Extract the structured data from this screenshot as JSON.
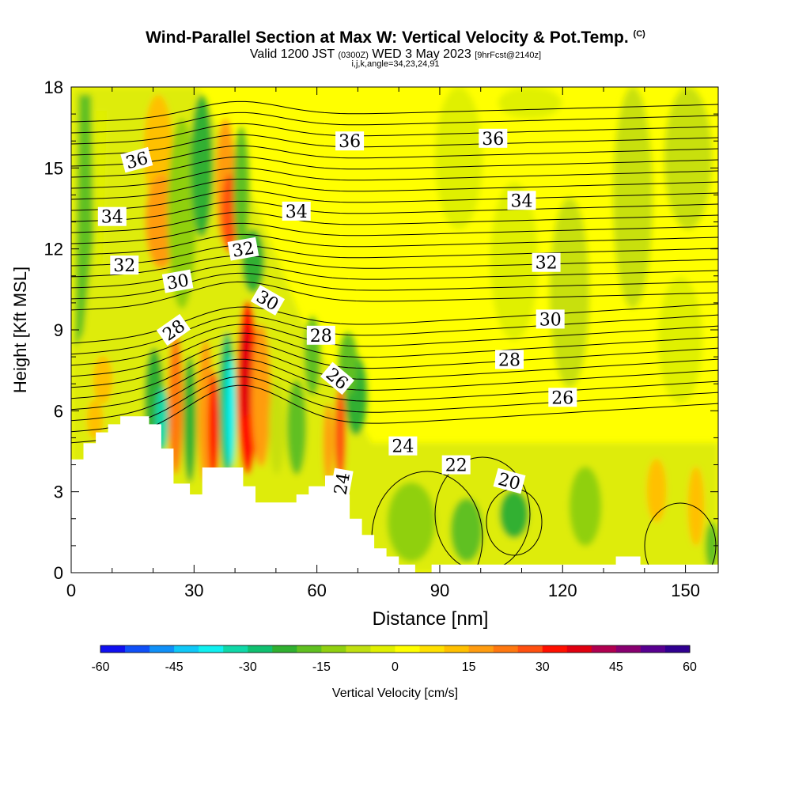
{
  "header": {
    "title": "Wind-Parallel Section at Max W: Vertical Velocity & Pot.Temp.",
    "copyright": "(C)",
    "valid": "Valid 1200 JST",
    "utc": "(0300Z)",
    "date": "WED 3 May 2023",
    "fcst": "[9hrFcst@2140z]",
    "indices": "i,j,k,angle=34,23,24,91"
  },
  "chart_data": {
    "type": "heatmap",
    "xlabel": "Distance [nm]",
    "ylabel": "Height [Kft MSL]",
    "xlim": [
      0,
      158
    ],
    "ylim": [
      0,
      18
    ],
    "xticks": [
      0,
      30,
      60,
      90,
      120,
      150
    ],
    "yticks": [
      0,
      3,
      6,
      9,
      12,
      15,
      18
    ],
    "colorbar": {
      "label": "Vertical Velocity [cm/s]",
      "ticks": [
        -60,
        -45,
        -30,
        -15,
        0,
        15,
        30,
        45,
        60
      ],
      "colors": [
        "#1010f0",
        "#1050f8",
        "#1090f8",
        "#10c8f8",
        "#10f0f0",
        "#10d8a8",
        "#10c070",
        "#30b030",
        "#60c020",
        "#90d010",
        "#c0e010",
        "#e0f000",
        "#ffff00",
        "#ffe000",
        "#ffc000",
        "#ff9c10",
        "#ff7810",
        "#ff5010",
        "#ff1000",
        "#e00010",
        "#b00050",
        "#880070",
        "#580090",
        "#300090"
      ]
    },
    "terrain": [
      [
        0,
        4.2
      ],
      [
        3,
        4.2
      ],
      [
        3,
        4.8
      ],
      [
        6,
        4.8
      ],
      [
        6,
        5.2
      ],
      [
        9,
        5.2
      ],
      [
        9,
        5.5
      ],
      [
        12,
        5.5
      ],
      [
        12,
        5.8
      ],
      [
        19,
        5.8
      ],
      [
        19,
        5.5
      ],
      [
        22,
        5.5
      ],
      [
        22,
        4.6
      ],
      [
        25,
        4.6
      ],
      [
        25,
        3.3
      ],
      [
        29,
        3.3
      ],
      [
        29,
        2.9
      ],
      [
        32,
        2.9
      ],
      [
        32,
        3.9
      ],
      [
        42,
        3.9
      ],
      [
        42,
        3.2
      ],
      [
        45,
        3.2
      ],
      [
        45,
        2.6
      ],
      [
        55,
        2.6
      ],
      [
        55,
        2.9
      ],
      [
        58,
        2.9
      ],
      [
        58,
        3.2
      ],
      [
        62,
        3.2
      ],
      [
        62,
        3.6
      ],
      [
        65,
        3.6
      ],
      [
        65,
        2.9
      ],
      [
        68,
        2.9
      ],
      [
        68,
        2.0
      ],
      [
        71,
        2.0
      ],
      [
        71,
        1.4
      ],
      [
        74,
        1.4
      ],
      [
        74,
        0.9
      ],
      [
        77,
        0.9
      ],
      [
        77,
        0.6
      ],
      [
        80,
        0.6
      ],
      [
        80,
        0.3
      ],
      [
        84,
        0.3
      ],
      [
        84,
        0.0
      ],
      [
        88,
        0.0
      ],
      [
        88,
        0.3
      ],
      [
        133,
        0.3
      ],
      [
        133,
        0.6
      ],
      [
        139,
        0.6
      ],
      [
        139,
        0.3
      ],
      [
        158,
        0.3
      ]
    ],
    "theta_labels": [
      {
        "text": "36",
        "x": 16,
        "y": 15.3,
        "angle": -15
      },
      {
        "text": "36",
        "x": 68,
        "y": 16.0,
        "angle": 0
      },
      {
        "text": "36",
        "x": 103,
        "y": 16.1,
        "angle": 0
      },
      {
        "text": "34",
        "x": 10,
        "y": 13.2,
        "angle": 0
      },
      {
        "text": "34",
        "x": 55,
        "y": 13.4,
        "angle": 0
      },
      {
        "text": "34",
        "x": 110,
        "y": 13.8,
        "angle": 0
      },
      {
        "text": "32",
        "x": 13,
        "y": 11.4,
        "angle": 0
      },
      {
        "text": "32",
        "x": 42,
        "y": 12.0,
        "angle": -10
      },
      {
        "text": "32",
        "x": 116,
        "y": 11.5,
        "angle": 0
      },
      {
        "text": "30",
        "x": 26,
        "y": 10.8,
        "angle": -10
      },
      {
        "text": "30",
        "x": 48,
        "y": 10.1,
        "angle": 30
      },
      {
        "text": "30",
        "x": 117,
        "y": 9.4,
        "angle": 0
      },
      {
        "text": "28",
        "x": 25,
        "y": 9.0,
        "angle": -35
      },
      {
        "text": "28",
        "x": 61,
        "y": 8.8,
        "angle": 0
      },
      {
        "text": "28",
        "x": 107,
        "y": 7.9,
        "angle": 0
      },
      {
        "text": "26",
        "x": 65,
        "y": 7.2,
        "angle": 40
      },
      {
        "text": "26",
        "x": 120,
        "y": 6.5,
        "angle": 0
      },
      {
        "text": "24",
        "x": 81,
        "y": 4.7,
        "angle": 0
      },
      {
        "text": "24",
        "x": 66,
        "y": 3.3,
        "angle": -80
      },
      {
        "text": "22",
        "x": 94,
        "y": 4.0,
        "angle": 0
      },
      {
        "text": "20",
        "x": 107,
        "y": 3.4,
        "angle": 15
      }
    ]
  }
}
